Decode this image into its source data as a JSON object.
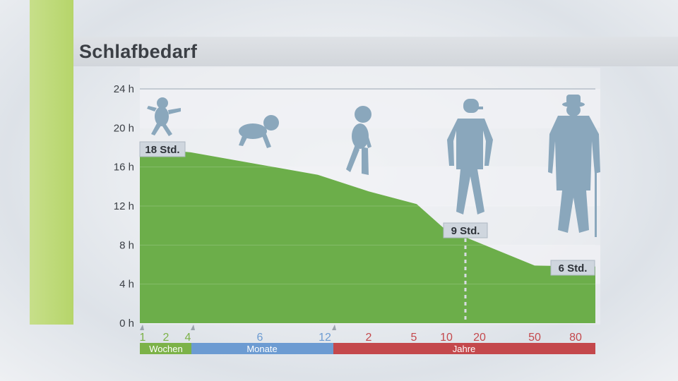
{
  "title": "Schlafbedarf",
  "colors": {
    "area": "#6cae4a",
    "wochen": "#7cb248",
    "monate": "#6c9bd2",
    "jahre": "#c4484c",
    "silhouette": "#8aa7bc",
    "accent": "#b6d56a"
  },
  "chart_data": {
    "type": "area",
    "title": "Schlafbedarf",
    "ylim": [
      0,
      24
    ],
    "y_ticks": [
      "0 h",
      "4 h",
      "8 h",
      "12 h",
      "16 h",
      "20 h",
      "24 h"
    ],
    "x_labels": [
      {
        "label": "1",
        "group": "Wochen"
      },
      {
        "label": "2",
        "group": "Wochen"
      },
      {
        "label": "4",
        "group": "Wochen"
      },
      {
        "label": "6",
        "group": "Monate"
      },
      {
        "label": "12",
        "group": "Monate"
      },
      {
        "label": "2",
        "group": "Jahre"
      },
      {
        "label": "5",
        "group": "Jahre"
      },
      {
        "label": "10",
        "group": "Jahre"
      },
      {
        "label": "20",
        "group": "Jahre"
      },
      {
        "label": "50",
        "group": "Jahre"
      },
      {
        "label": "80",
        "group": "Jahre"
      }
    ],
    "x_groups": [
      "Wochen",
      "Monate",
      "Jahre"
    ],
    "series": [
      {
        "points": [
          {
            "x": "1 Woche",
            "y": 18
          },
          {
            "x": "4 Wochen",
            "y": 17.5
          },
          {
            "x": "12 Monate",
            "y": 15.2
          },
          {
            "x": "2 Jahre",
            "y": 13.5
          },
          {
            "x": "5 Jahre",
            "y": 12.2
          },
          {
            "x": "10 Jahre",
            "y": 9.5
          },
          {
            "x": "15 Jahre",
            "y": 8.8
          },
          {
            "x": "50 Jahre",
            "y": 5.9
          },
          {
            "x": "80 Jahre",
            "y": 5.8
          }
        ]
      }
    ],
    "annotations": [
      "18 Std.",
      "9 Std.",
      "6 Std."
    ],
    "grid": true
  }
}
